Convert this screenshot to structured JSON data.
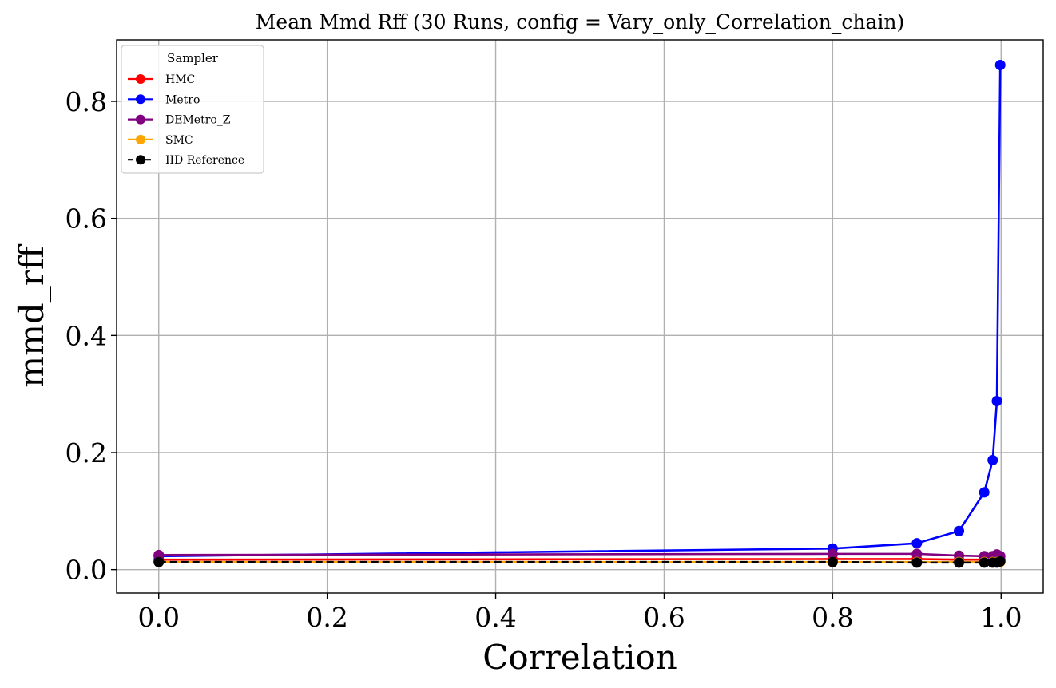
{
  "chart_data": {
    "type": "line",
    "title": "Mean Mmd Rff (30 Runs, config = Vary_only_Correlation_chain)",
    "xlabel": "Correlation",
    "ylabel": "mmd_rff",
    "xlim": [
      -0.05,
      1.05
    ],
    "ylim": [
      -0.04,
      0.905
    ],
    "xticks": [
      0.0,
      0.2,
      0.4,
      0.6,
      0.8,
      1.0
    ],
    "xtick_labels": [
      "0.0",
      "0.2",
      "0.4",
      "0.6",
      "0.8",
      "1.0"
    ],
    "yticks": [
      0.0,
      0.2,
      0.4,
      0.6,
      0.8
    ],
    "ytick_labels": [
      "0.0",
      "0.2",
      "0.4",
      "0.6",
      "0.8"
    ],
    "grid": true,
    "legend": {
      "title": "Sampler",
      "placement": "upper-left"
    },
    "x": [
      0.0,
      0.8,
      0.9,
      0.95,
      0.98,
      0.99,
      0.995,
      0.999
    ],
    "series": [
      {
        "name": "HMC",
        "color": "#ff0000",
        "dashed": false,
        "values": [
          0.017,
          0.018,
          0.018,
          0.017,
          0.017,
          0.017,
          0.017,
          0.017
        ]
      },
      {
        "name": "Metro",
        "color": "#0000ff",
        "dashed": false,
        "values": [
          0.023,
          0.036,
          0.045,
          0.066,
          0.132,
          0.187,
          0.288,
          0.862
        ]
      },
      {
        "name": "DEMetro_Z",
        "color": "#800080",
        "dashed": false,
        "values": [
          0.025,
          0.027,
          0.027,
          0.024,
          0.023,
          0.023,
          0.026,
          0.023
        ]
      },
      {
        "name": "SMC",
        "color": "#ffa500",
        "dashed": false,
        "values": [
          0.013,
          0.013,
          0.013,
          0.013,
          0.013,
          0.013,
          0.013,
          0.013
        ]
      },
      {
        "name": "IID Reference",
        "color": "#000000",
        "dashed": true,
        "values": [
          0.013,
          0.013,
          0.012,
          0.012,
          0.012,
          0.012,
          0.012,
          0.014
        ]
      }
    ]
  }
}
